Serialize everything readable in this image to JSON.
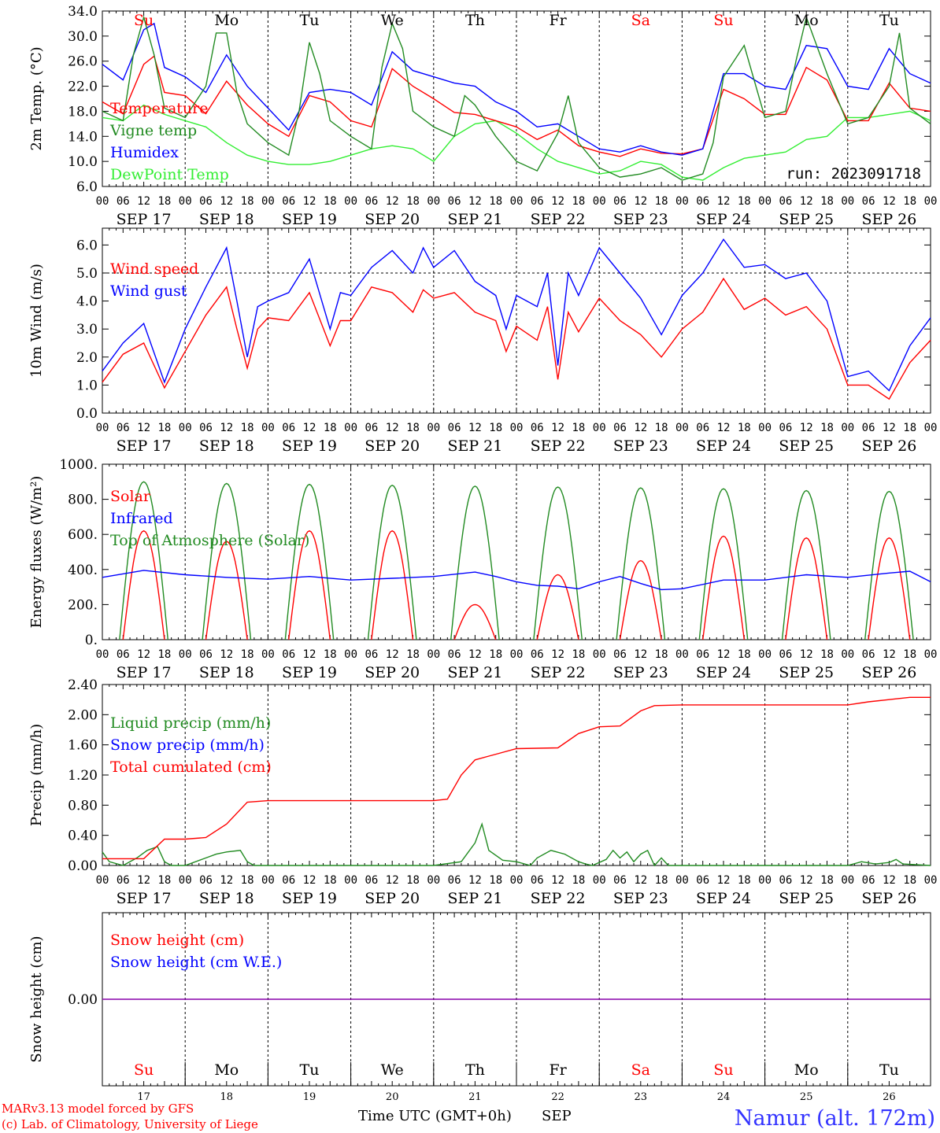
{
  "colors": {
    "red": "#ff0000",
    "green": "#228b22",
    "lightgreen": "#33ee33",
    "blue": "#0000ff",
    "purple": "#8800aa",
    "black": "#000000"
  },
  "days": [
    {
      "abbr": "Su",
      "date": "SEP 17",
      "num": "17",
      "weekend": true
    },
    {
      "abbr": "Mo",
      "date": "SEP 18",
      "num": "18",
      "weekend": false
    },
    {
      "abbr": "Tu",
      "date": "SEP 19",
      "num": "19",
      "weekend": false
    },
    {
      "abbr": "We",
      "date": "SEP 20",
      "num": "20",
      "weekend": false
    },
    {
      "abbr": "Th",
      "date": "SEP 21",
      "num": "21",
      "weekend": false
    },
    {
      "abbr": "Fr",
      "date": "SEP 22",
      "num": "22",
      "weekend": false
    },
    {
      "abbr": "Sa",
      "date": "SEP 23",
      "num": "23",
      "weekend": true
    },
    {
      "abbr": "Su",
      "date": "SEP 24",
      "num": "24",
      "weekend": true
    },
    {
      "abbr": "Mo",
      "date": "SEP 25",
      "num": "25",
      "weekend": false
    },
    {
      "abbr": "Tu",
      "date": "SEP 26",
      "num": "26",
      "weekend": false
    }
  ],
  "hour_ticks": [
    "00",
    "06",
    "12",
    "18"
  ],
  "footer": {
    "model_line": "MARv3.13 model forced by GFS",
    "credit_line": "(c) Lab. of Climatology, University of Liege",
    "time_label": "Time UTC (GMT+0h)",
    "month_label": "SEP",
    "station": "Namur (alt. 172m)"
  },
  "chart_data": [
    {
      "type": "line",
      "id": "temp",
      "ylabel": "2m Temp. (°C)",
      "yticks": [
        "34.0",
        "30.0",
        "26.0",
        "22.0",
        "18.0",
        "14.0",
        "10.0",
        "6.0"
      ],
      "ylim": [
        6,
        34
      ],
      "run_label": "run: 2023091718",
      "x_unit": "hours since 2023-09-17 00 UTC",
      "series": [
        {
          "name": "Temperature",
          "color": "red",
          "x": [
            0,
            6,
            12,
            15,
            18,
            24,
            30,
            36,
            42,
            48,
            54,
            60,
            66,
            72,
            78,
            84,
            90,
            96,
            102,
            108,
            114,
            120,
            126,
            132,
            138,
            144,
            150,
            156,
            162,
            168,
            174,
            180,
            186,
            192,
            198,
            204,
            210,
            216,
            222,
            228,
            234,
            240
          ],
          "y": [
            19.5,
            17.6,
            25.5,
            26.8,
            21.0,
            20.5,
            17.6,
            22.8,
            19.0,
            16.0,
            14.0,
            20.5,
            19.5,
            16.5,
            15.5,
            24.8,
            22.0,
            20.0,
            17.8,
            17.5,
            16.5,
            15.5,
            13.5,
            15.0,
            12.5,
            11.5,
            10.8,
            12.0,
            11.3,
            11.2,
            12.0,
            21.5,
            20.0,
            17.5,
            17.5,
            25.0,
            23.0,
            16.5,
            16.5,
            22.5,
            18.5,
            18.0
          ]
        },
        {
          "name": "Vigne temp",
          "color": "green",
          "x": [
            0,
            6,
            9,
            12,
            15,
            18,
            24,
            30,
            33,
            36,
            39,
            42,
            48,
            54,
            57,
            60,
            63,
            66,
            72,
            78,
            81,
            84,
            87,
            90,
            96,
            102,
            105,
            108,
            114,
            120,
            126,
            132,
            135,
            138,
            144,
            150,
            156,
            162,
            168,
            174,
            177,
            180,
            186,
            192,
            198,
            201,
            204,
            210,
            216,
            222,
            228,
            231,
            234,
            240
          ],
          "y": [
            18.0,
            16.5,
            27.0,
            33.0,
            27.0,
            18.5,
            17.0,
            22.0,
            30.5,
            30.5,
            21.0,
            16.0,
            13.0,
            11.0,
            18.0,
            29.0,
            24.0,
            16.5,
            14.0,
            12.0,
            25.0,
            32.0,
            28.0,
            18.0,
            15.5,
            14.0,
            20.5,
            19.0,
            14.0,
            10.0,
            8.5,
            14.5,
            20.5,
            13.0,
            9.0,
            7.5,
            8.0,
            9.0,
            7.0,
            8.0,
            13.0,
            23.5,
            28.5,
            17.0,
            18.0,
            26.0,
            33.0,
            24.0,
            16.0,
            17.0,
            22.0,
            30.5,
            18.5,
            16.0
          ]
        },
        {
          "name": "Humidex",
          "color": "blue",
          "x": [
            0,
            6,
            12,
            15,
            18,
            24,
            30,
            36,
            42,
            48,
            54,
            60,
            66,
            72,
            78,
            84,
            90,
            96,
            102,
            108,
            114,
            120,
            126,
            132,
            138,
            144,
            150,
            156,
            162,
            168,
            174,
            180,
            186,
            192,
            198,
            204,
            210,
            216,
            222,
            228,
            234,
            240
          ],
          "y": [
            25.5,
            23.0,
            31.0,
            32.0,
            25.0,
            23.5,
            21.0,
            27.0,
            22.0,
            18.5,
            15.0,
            21.0,
            21.5,
            21.0,
            19.0,
            27.5,
            24.5,
            23.5,
            22.5,
            22.0,
            19.5,
            18.0,
            15.5,
            16.0,
            14.0,
            12.0,
            11.5,
            12.5,
            11.5,
            11.0,
            12.0,
            24.0,
            24.0,
            22.0,
            21.5,
            28.5,
            28.0,
            22.0,
            21.5,
            28.0,
            24.0,
            22.5
          ]
        },
        {
          "name": "DewPoint Temp",
          "color": "lightgreen",
          "x": [
            0,
            6,
            12,
            18,
            24,
            30,
            36,
            42,
            48,
            54,
            60,
            66,
            72,
            78,
            84,
            90,
            96,
            102,
            108,
            114,
            120,
            126,
            132,
            138,
            144,
            150,
            156,
            162,
            168,
            174,
            180,
            186,
            192,
            198,
            204,
            210,
            216,
            222,
            228,
            234,
            240
          ],
          "y": [
            17.0,
            16.5,
            19.0,
            17.5,
            16.5,
            15.5,
            13.0,
            11.0,
            10.0,
            9.5,
            9.5,
            10.0,
            11.0,
            12.0,
            12.5,
            12.0,
            10.0,
            14.0,
            16.0,
            16.5,
            14.5,
            12.0,
            10.0,
            9.0,
            8.0,
            8.5,
            10.0,
            9.5,
            7.5,
            7.0,
            9.0,
            10.5,
            11.0,
            11.5,
            13.5,
            14.0,
            17.0,
            17.0,
            17.5,
            18.0,
            16.5
          ]
        }
      ]
    },
    {
      "type": "line",
      "id": "wind",
      "ylabel": "10m Wind (m/s)",
      "yticks": [
        "6.0",
        "5.0",
        "4.0",
        "3.0",
        "2.0",
        "1.0",
        "0.0"
      ],
      "ylim": [
        0,
        6.6
      ],
      "reference_line": 5.0,
      "x_unit": "hours since 2023-09-17 00 UTC",
      "series": [
        {
          "name": "Wind speed",
          "color": "red",
          "x": [
            0,
            6,
            12,
            18,
            24,
            30,
            36,
            39,
            42,
            45,
            48,
            54,
            60,
            66,
            69,
            72,
            78,
            84,
            90,
            93,
            96,
            102,
            108,
            114,
            117,
            120,
            126,
            129,
            132,
            135,
            138,
            144,
            150,
            156,
            162,
            168,
            174,
            180,
            186,
            192,
            198,
            204,
            210,
            216,
            222,
            228,
            234,
            240
          ],
          "y": [
            1.1,
            2.1,
            2.5,
            0.9,
            2.2,
            3.5,
            4.5,
            3.0,
            1.6,
            3.0,
            3.4,
            3.3,
            4.3,
            2.4,
            3.3,
            3.3,
            4.5,
            4.3,
            3.6,
            4.4,
            4.1,
            4.3,
            3.6,
            3.3,
            2.2,
            3.1,
            2.6,
            3.8,
            1.2,
            3.6,
            2.9,
            4.1,
            3.3,
            2.8,
            2.0,
            3.0,
            3.6,
            4.8,
            3.7,
            4.1,
            3.5,
            3.8,
            3.0,
            1.0,
            1.0,
            0.5,
            1.8,
            2.6
          ]
        },
        {
          "name": "Wind gust",
          "color": "blue",
          "x": [
            0,
            6,
            12,
            18,
            24,
            30,
            36,
            39,
            42,
            45,
            48,
            54,
            60,
            66,
            69,
            72,
            78,
            84,
            90,
            93,
            96,
            102,
            108,
            114,
            117,
            120,
            126,
            129,
            132,
            135,
            138,
            144,
            150,
            156,
            162,
            168,
            174,
            180,
            186,
            192,
            198,
            204,
            210,
            216,
            222,
            228,
            234,
            240
          ],
          "y": [
            1.5,
            2.5,
            3.2,
            1.1,
            3.0,
            4.5,
            5.9,
            4.0,
            2.0,
            3.8,
            4.0,
            4.3,
            5.5,
            3.0,
            4.3,
            4.2,
            5.2,
            5.8,
            5.0,
            5.9,
            5.2,
            5.8,
            4.7,
            4.2,
            3.0,
            4.2,
            3.8,
            5.0,
            1.7,
            5.0,
            4.2,
            5.9,
            5.0,
            4.1,
            2.8,
            4.2,
            5.0,
            6.2,
            5.2,
            5.3,
            4.8,
            5.0,
            4.0,
            1.3,
            1.5,
            0.8,
            2.4,
            3.4
          ]
        }
      ]
    },
    {
      "type": "line",
      "id": "energy",
      "ylabel": "Energy fluxes (W/m²)",
      "yticks": [
        "1000.",
        "800.",
        "600.",
        "400.",
        "200.",
        "0."
      ],
      "ylim": [
        0,
        1000
      ],
      "x_unit": "hours since 2023-09-17 00 UTC",
      "daily_peaks": {
        "top_of_atmosphere": [
          900,
          890,
          885,
          880,
          875,
          870,
          865,
          860,
          850,
          845
        ],
        "solar": [
          620,
          560,
          620,
          620,
          200,
          370,
          450,
          590,
          580,
          580
        ]
      },
      "series": [
        {
          "name": "Solar",
          "color": "red"
        },
        {
          "name": "Infrared",
          "color": "blue",
          "x": [
            0,
            12,
            24,
            36,
            48,
            60,
            72,
            84,
            96,
            108,
            114,
            120,
            126,
            132,
            138,
            144,
            150,
            156,
            162,
            168,
            180,
            192,
            204,
            216,
            228,
            234,
            240
          ],
          "y": [
            355,
            395,
            370,
            355,
            345,
            360,
            340,
            350,
            360,
            385,
            360,
            330,
            310,
            305,
            290,
            330,
            360,
            320,
            285,
            290,
            340,
            340,
            370,
            355,
            380,
            390,
            330
          ]
        },
        {
          "name": "Top of Atmosphere (Solar)",
          "color": "green"
        }
      ]
    },
    {
      "type": "line",
      "id": "precip",
      "ylabel": "Precip (mm/h)",
      "yticks": [
        "2.40",
        "2.00",
        "1.60",
        "1.20",
        "0.80",
        "0.40",
        "0.00"
      ],
      "ylim": [
        0,
        2.4
      ],
      "x_unit": "hours since 2023-09-17 00 UTC",
      "series": [
        {
          "name": "Liquid precip (mm/h)",
          "color": "green",
          "x": [
            0,
            2,
            6,
            10,
            13,
            16,
            18,
            20,
            24,
            30,
            33,
            36,
            40,
            42,
            44,
            48,
            96,
            104,
            108,
            110,
            112,
            116,
            120,
            124,
            126,
            130,
            134,
            138,
            140,
            142,
            146,
            148,
            150,
            152,
            154,
            156,
            158,
            160,
            162,
            164,
            168,
            216,
            220,
            224,
            228,
            230,
            232,
            240
          ],
          "y": [
            0.18,
            0.05,
            0.0,
            0.1,
            0.2,
            0.25,
            0.05,
            0.0,
            0.0,
            0.1,
            0.15,
            0.18,
            0.2,
            0.05,
            0.0,
            0.0,
            0.0,
            0.05,
            0.3,
            0.55,
            0.2,
            0.07,
            0.05,
            0.0,
            0.1,
            0.2,
            0.15,
            0.05,
            0.02,
            0.0,
            0.08,
            0.2,
            0.1,
            0.18,
            0.05,
            0.15,
            0.2,
            0.0,
            0.1,
            0.0,
            0.0,
            0.0,
            0.05,
            0.02,
            0.04,
            0.08,
            0.02,
            0.0
          ]
        },
        {
          "name": "Snow precip (mm/h)",
          "color": "blue"
        },
        {
          "name": "Total cumulated (cm)",
          "color": "red",
          "x": [
            0,
            2,
            12,
            18,
            24,
            30,
            36,
            42,
            48,
            96,
            100,
            104,
            108,
            112,
            120,
            132,
            138,
            144,
            150,
            156,
            160,
            168,
            216,
            222,
            234,
            240
          ],
          "y": [
            0.09,
            0.09,
            0.09,
            0.35,
            0.35,
            0.37,
            0.55,
            0.84,
            0.86,
            0.86,
            0.88,
            1.2,
            1.4,
            1.45,
            1.55,
            1.56,
            1.75,
            1.84,
            1.85,
            2.05,
            2.12,
            2.13,
            2.13,
            2.17,
            2.23,
            2.23
          ]
        }
      ]
    },
    {
      "type": "line",
      "id": "snow",
      "ylabel": "Snow height (cm)",
      "yticks": [
        "0.00"
      ],
      "x_unit": "hours since 2023-09-17 00 UTC",
      "series": [
        {
          "name": "Snow height (cm)",
          "color": "red",
          "x": [
            0,
            240
          ],
          "y": [
            0,
            0
          ]
        },
        {
          "name": "Snow height (cm W.E.)",
          "color": "blue",
          "x": [
            0,
            240
          ],
          "y": [
            0,
            0
          ]
        }
      ]
    }
  ]
}
